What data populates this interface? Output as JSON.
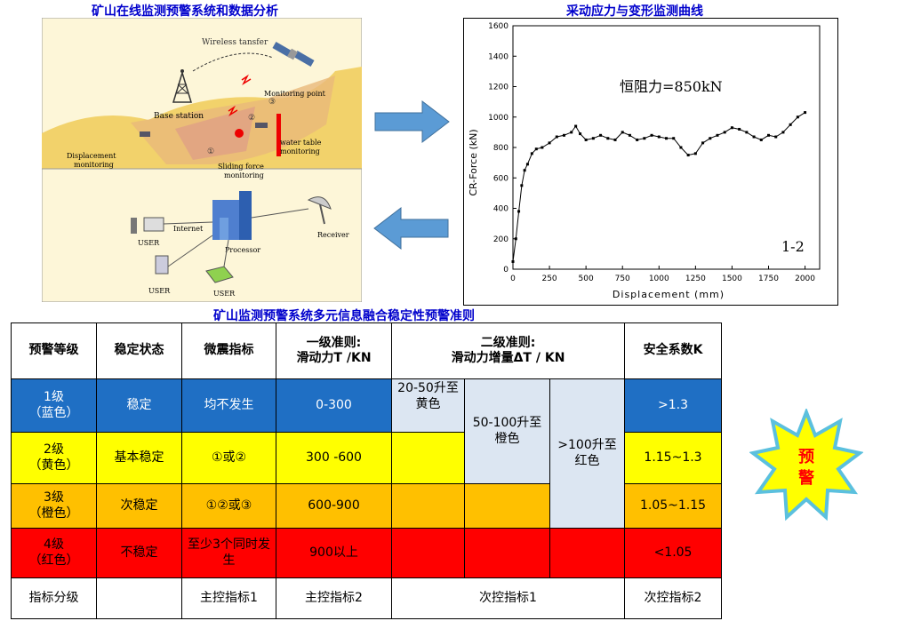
{
  "titles": {
    "left": "矿山在线监测预警系统和数据分析",
    "right": "采动应力与变形监测曲线",
    "table": "矿山监测预警系统多元信息融合稳定性预警准则"
  },
  "illustration": {
    "wireless": "Wireless tansfer",
    "base_station": "Base station",
    "monitoring_point": "Monitoring point",
    "displacement": [
      "Displacement",
      "monitoring"
    ],
    "water_table": [
      "water table",
      "monitoring"
    ],
    "sliding_force": [
      "Sliding force",
      "monitoring"
    ],
    "internet": "Internet",
    "processor": "Processor",
    "receiver": "Receiver",
    "user": "USER",
    "points": [
      "①",
      "②",
      "③"
    ]
  },
  "chart_data": {
    "type": "line",
    "xlabel": "Displacement (mm)",
    "ylabel": "CR-Force (kN)",
    "xlim": [
      0,
      2100
    ],
    "ylim": [
      0,
      1600
    ],
    "xticks": [
      0,
      250,
      500,
      750,
      1000,
      1250,
      1500,
      1750,
      2000
    ],
    "yticks": [
      0,
      200,
      400,
      600,
      800,
      1000,
      1200,
      1400,
      1600
    ],
    "annotation": "恒阻力=850kN",
    "panel_label": "1-2",
    "x": [
      0,
      20,
      40,
      60,
      80,
      100,
      130,
      160,
      200,
      250,
      300,
      350,
      400,
      430,
      460,
      500,
      550,
      600,
      650,
      700,
      750,
      800,
      850,
      900,
      950,
      1000,
      1050,
      1100,
      1150,
      1200,
      1250,
      1300,
      1350,
      1400,
      1450,
      1500,
      1550,
      1600,
      1650,
      1700,
      1750,
      1800,
      1850,
      1900,
      1950,
      2000
    ],
    "y": [
      50,
      200,
      380,
      550,
      650,
      690,
      760,
      790,
      800,
      830,
      870,
      880,
      900,
      940,
      890,
      850,
      860,
      880,
      860,
      850,
      900,
      880,
      850,
      860,
      880,
      870,
      860,
      860,
      800,
      750,
      760,
      830,
      860,
      880,
      900,
      930,
      920,
      900,
      870,
      850,
      880,
      870,
      900,
      950,
      1000,
      1030
    ]
  },
  "table": {
    "headers": {
      "level": "预警等级",
      "state": "稳定状态",
      "micro": "微震指标",
      "c1": [
        "一级准则:",
        "滑动力T /KN"
      ],
      "c2": [
        "二级准则:",
        "滑动力增量ΔT / KN"
      ],
      "k": "安全系数K"
    },
    "rows": [
      {
        "level": [
          "1级",
          "（蓝色）"
        ],
        "state": "稳定",
        "micro": "均不发生",
        "force": "0-300",
        "k": ">1.3"
      },
      {
        "level": [
          "2级",
          "（黄色）"
        ],
        "state": "基本稳定",
        "micro": "①或②",
        "force": "300 -600",
        "k": "1.15~1.3"
      },
      {
        "level": [
          "3级",
          "（橙色）"
        ],
        "state": "次稳定",
        "micro": "①②或③",
        "force": "600-900",
        "k": "1.05~1.15"
      },
      {
        "level": [
          "4级",
          "（红色）"
        ],
        "state": "不稳定",
        "micro": "至少3个同时发生",
        "force": "900以上",
        "k": "<1.05"
      }
    ],
    "increments": [
      "20-50升至黄色",
      "50-100升至橙色",
      ">100升至红色"
    ],
    "footer": {
      "label": "指标分级",
      "micro": "主控指标1",
      "force": "主控指标2",
      "inc": "次控指标1",
      "k": "次控指标2"
    }
  },
  "badge": {
    "line1": "预",
    "line2": "警"
  },
  "colors": {
    "blue": "#1f6fc4",
    "yellow": "#ffff00",
    "orange": "#ffc000",
    "red": "#ff0000",
    "title": "#0000cc"
  }
}
